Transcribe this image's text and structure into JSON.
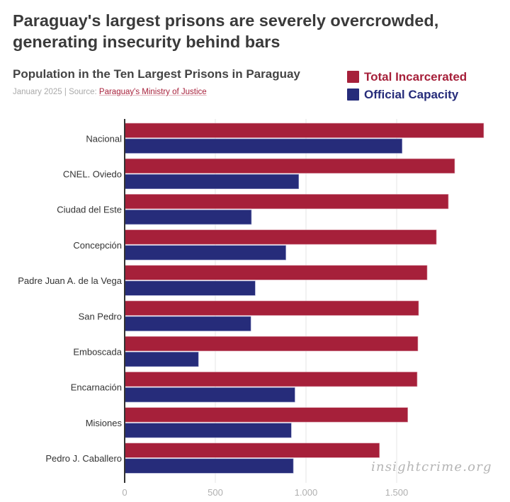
{
  "header": {
    "title": "Paraguay's largest prisons are severely overcrowded, generating insecurity behind bars",
    "subtitle": "Population in the Ten Largest Prisons in Paraguay",
    "date_source_prefix": "January 2025 | Source: ",
    "source_link": "Paraguay's Ministry of Justice"
  },
  "legend": [
    {
      "label": "Total Incarcerated",
      "color": "#a6203a"
    },
    {
      "label": "Official Capacity",
      "color": "#262c7a"
    }
  ],
  "watermark": "insightcrime.org",
  "chart_data": {
    "type": "bar",
    "orientation": "horizontal",
    "title": "Population in the Ten Largest Prisons in Paraguay",
    "xlabel": "",
    "ylabel": "",
    "xlim": [
      0,
      1980
    ],
    "x_ticks": [
      0,
      500,
      1000,
      1500
    ],
    "x_tick_labels": [
      "0",
      "500",
      "1.000",
      "1.500"
    ],
    "grid": true,
    "legend_position": "top-right",
    "categories": [
      "Nacional",
      "CNEL. Oviedo",
      "Ciudad del Este",
      "Concepción",
      "Padre Juan A. de la Vega",
      "San Pedro",
      "Emboscada",
      "Encarnación",
      "Misiones",
      "Pedro J. Caballero"
    ],
    "series": [
      {
        "name": "Total Incarcerated",
        "color": "#a6203a",
        "values": [
          1980,
          1820,
          1785,
          1719,
          1668,
          1621,
          1617,
          1613,
          1561,
          1405
        ]
      },
      {
        "name": "Official Capacity",
        "color": "#262c7a",
        "values": [
          1530,
          960,
          699,
          889,
          720,
          696,
          407,
          939,
          919,
          930
        ]
      }
    ]
  }
}
